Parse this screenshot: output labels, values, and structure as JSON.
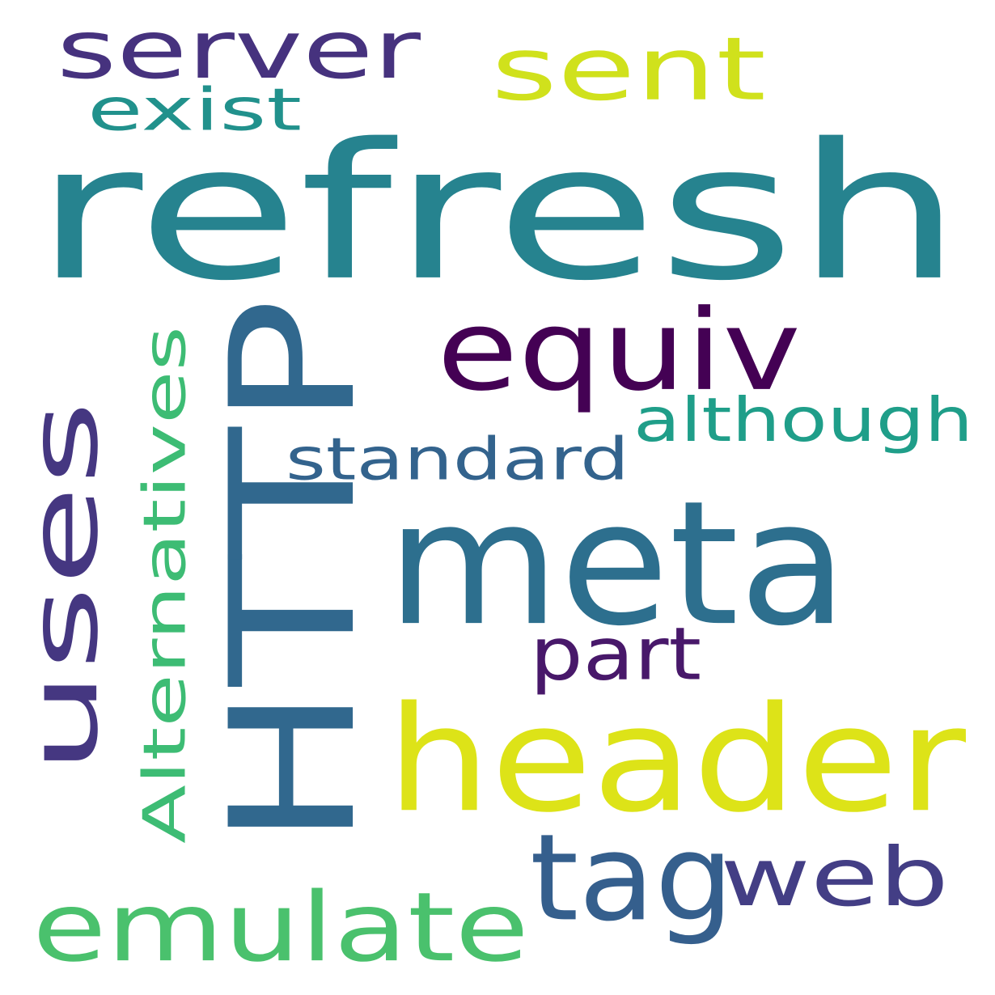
{
  "words": [
    {
      "id": "refresh",
      "text": "refresh",
      "color": "#26838f",
      "rotated": false
    },
    {
      "id": "http",
      "text": "HTTP",
      "color": "#31688e",
      "rotated": true
    },
    {
      "id": "meta",
      "text": "meta",
      "color": "#2d6f8e",
      "rotated": false
    },
    {
      "id": "header",
      "text": "header",
      "color": "#dde318",
      "rotated": false
    },
    {
      "id": "uses",
      "text": "uses",
      "color": "#453781",
      "rotated": true
    },
    {
      "id": "equiv",
      "text": "equiv",
      "color": "#440154",
      "rotated": false
    },
    {
      "id": "tag",
      "text": "tag",
      "color": "#355f8d",
      "rotated": false
    },
    {
      "id": "web",
      "text": "web",
      "color": "#433e85",
      "rotated": false
    },
    {
      "id": "emulate",
      "text": "emulate",
      "color": "#4ac16d",
      "rotated": false
    },
    {
      "id": "server",
      "text": "server",
      "color": "#46327e",
      "rotated": false
    },
    {
      "id": "sent",
      "text": "sent",
      "color": "#d0e11c",
      "rotated": false
    },
    {
      "id": "alternatives",
      "text": "Alternatives",
      "color": "#3dbc74",
      "rotated": true
    },
    {
      "id": "although",
      "text": "although",
      "color": "#1f9e89",
      "rotated": false
    },
    {
      "id": "standard",
      "text": "standard",
      "color": "#33638d",
      "rotated": false
    },
    {
      "id": "exist",
      "text": "exist",
      "color": "#21918c",
      "rotated": false
    },
    {
      "id": "part",
      "text": "part",
      "color": "#48186a",
      "rotated": false
    }
  ]
}
